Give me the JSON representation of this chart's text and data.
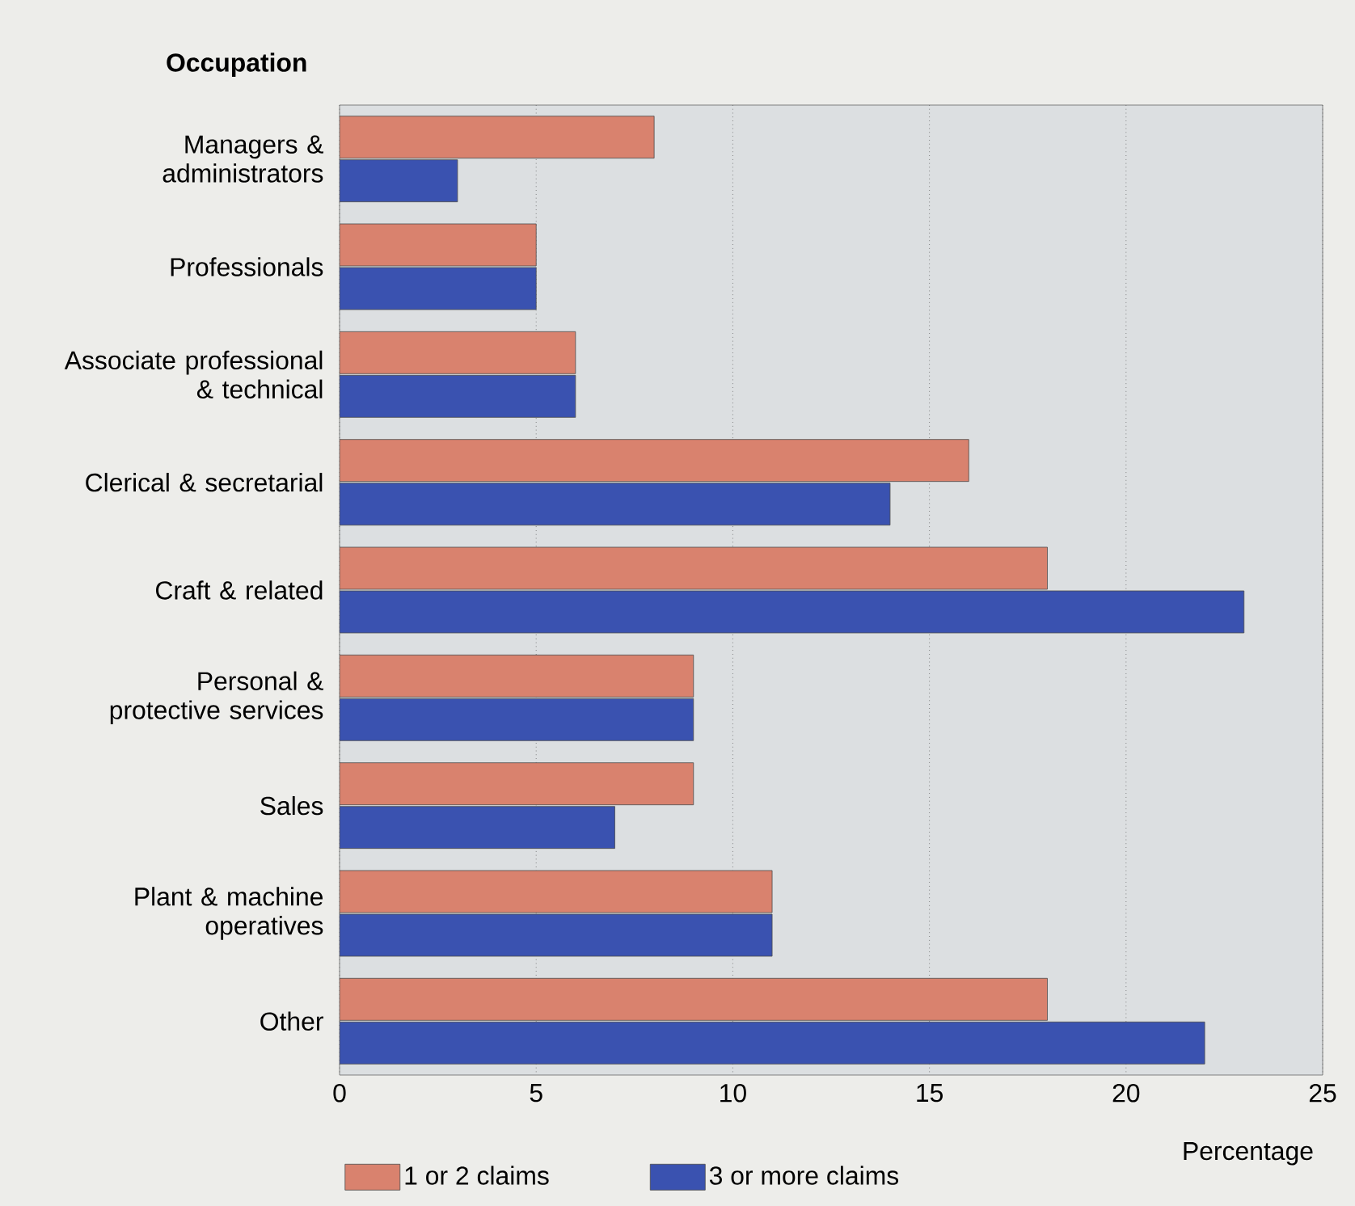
{
  "chart_data": {
    "type": "bar",
    "orientation": "horizontal",
    "title": "Occupation",
    "xlabel": "Percentage",
    "categories": [
      "Managers & administrators",
      "Professionals",
      "Associate professional & technical",
      "Clerical & secretarial",
      "Craft & related",
      "Personal & protective services",
      "Sales",
      "Plant & machine operatives",
      "Other"
    ],
    "series": [
      {
        "name": "1 or 2 claims",
        "color": "#d9826e",
        "values": [
          8,
          5,
          6,
          16,
          18,
          9,
          9,
          11,
          18
        ]
      },
      {
        "name": "3 or more claims",
        "color": "#3a52b0",
        "values": [
          3,
          5,
          6,
          14,
          23,
          9,
          7,
          11,
          22
        ]
      }
    ],
    "xlim": [
      0,
      25
    ],
    "xticks": [
      0,
      5,
      10,
      15,
      20,
      25
    ],
    "grid": "x",
    "legend": "bottom"
  }
}
